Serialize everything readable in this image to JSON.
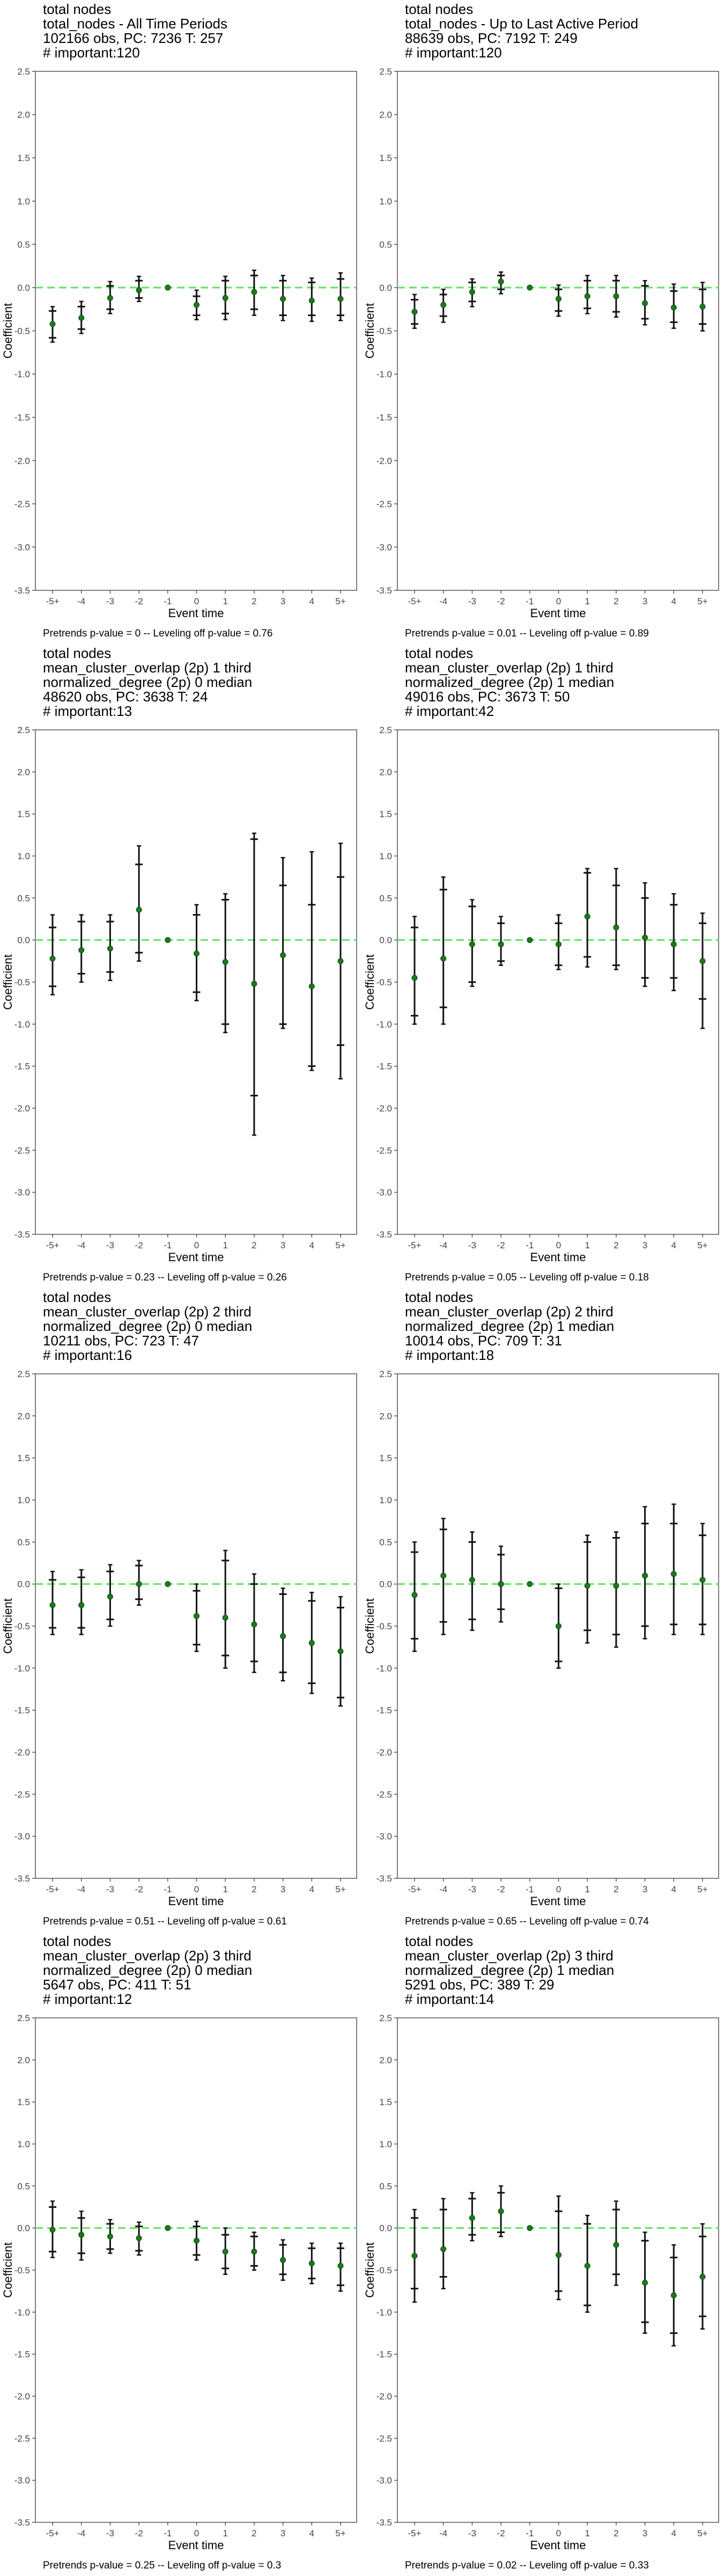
{
  "chart_data": [
    {
      "type": "scatter",
      "title_lines": [
        "total nodes",
        "total_nodes - All Time Periods",
        "102166 obs, PC: 7236 T: 257"
      ],
      "important": "# important:120",
      "xlabel": "Event time",
      "ylabel": "Coefficient",
      "categories": [
        "-5+",
        "-4",
        "-3",
        "-2",
        "-1",
        "0",
        "1",
        "2",
        "3",
        "4",
        "5+"
      ],
      "ylim": [
        -3.5,
        2.5
      ],
      "yticks": [
        "2.5",
        "2.0",
        "1.5",
        "1.0",
        "0.5",
        "0.0",
        "-0.5",
        "-1.0",
        "-1.5",
        "-2.0",
        "-2.5",
        "-3.0",
        "-3.5"
      ],
      "estimate": [
        -0.42,
        -0.35,
        -0.12,
        -0.03,
        0.0,
        -0.2,
        -0.12,
        -0.05,
        -0.13,
        -0.15,
        -0.13
      ],
      "ci90": [
        [
          -0.58,
          -0.27
        ],
        [
          -0.48,
          -0.22
        ],
        [
          -0.25,
          0.02
        ],
        [
          -0.12,
          0.08
        ],
        [
          0.0,
          0.0
        ],
        [
          -0.32,
          -0.1
        ],
        [
          -0.3,
          0.08
        ],
        [
          -0.25,
          0.14
        ],
        [
          -0.32,
          0.08
        ],
        [
          -0.32,
          0.06
        ],
        [
          -0.32,
          0.1
        ]
      ],
      "ci95": [
        [
          -0.63,
          -0.22
        ],
        [
          -0.53,
          -0.16
        ],
        [
          -0.3,
          0.07
        ],
        [
          -0.16,
          0.13
        ],
        [
          0.0,
          0.0
        ],
        [
          -0.37,
          -0.03
        ],
        [
          -0.37,
          0.13
        ],
        [
          -0.32,
          0.2
        ],
        [
          -0.38,
          0.14
        ],
        [
          -0.39,
          0.11
        ],
        [
          -0.38,
          0.17
        ]
      ],
      "pretrends": "Pretrends p-value = 0 -- Leveling off p-value = 0.76",
      "reference_line": 0.0
    },
    {
      "type": "scatter",
      "title_lines": [
        "total nodes",
        "total_nodes - Up to Last Active Period",
        "88639 obs, PC: 7192 T: 249"
      ],
      "important": "# important:120",
      "xlabel": "Event time",
      "ylabel": "Coefficient",
      "categories": [
        "-5+",
        "-4",
        "-3",
        "-2",
        "-1",
        "0",
        "1",
        "2",
        "3",
        "4",
        "5+"
      ],
      "ylim": [
        -3.5,
        2.5
      ],
      "yticks": [
        "2.5",
        "2.0",
        "1.5",
        "1.0",
        "0.5",
        "0.0",
        "-0.5",
        "-1.0",
        "-1.5",
        "-2.0",
        "-2.5",
        "-3.0",
        "-3.5"
      ],
      "estimate": [
        -0.28,
        -0.2,
        -0.05,
        0.07,
        0.0,
        -0.13,
        -0.1,
        -0.1,
        -0.18,
        -0.23,
        -0.22
      ],
      "ci90": [
        [
          -0.42,
          -0.14
        ],
        [
          -0.33,
          -0.08
        ],
        [
          -0.16,
          0.06
        ],
        [
          -0.02,
          0.14
        ],
        [
          0.0,
          0.0
        ],
        [
          -0.27,
          -0.02
        ],
        [
          -0.24,
          0.08
        ],
        [
          -0.28,
          0.08
        ],
        [
          -0.36,
          0.02
        ],
        [
          -0.4,
          -0.04
        ],
        [
          -0.42,
          -0.02
        ]
      ],
      "ci95": [
        [
          -0.47,
          -0.08
        ],
        [
          -0.4,
          -0.02
        ],
        [
          -0.22,
          0.1
        ],
        [
          -0.07,
          0.18
        ],
        [
          0.0,
          0.0
        ],
        [
          -0.33,
          0.03
        ],
        [
          -0.3,
          0.14
        ],
        [
          -0.34,
          0.14
        ],
        [
          -0.43,
          0.08
        ],
        [
          -0.47,
          0.04
        ],
        [
          -0.5,
          0.06
        ]
      ],
      "pretrends": "Pretrends p-value = 0.01 -- Leveling off p-value = 0.89",
      "reference_line": 0.0
    },
    {
      "type": "scatter",
      "title_lines": [
        "total nodes",
        "mean_cluster_overlap (2p) 1 third",
        "normalized_degree (2p) 0 median",
        "48620 obs, PC: 3638 T: 24"
      ],
      "important": "# important:13",
      "xlabel": "Event time",
      "ylabel": "Coefficient",
      "categories": [
        "-5+",
        "-4",
        "-3",
        "-2",
        "-1",
        "0",
        "1",
        "2",
        "3",
        "4",
        "5+"
      ],
      "ylim": [
        -3.5,
        2.5
      ],
      "yticks": [
        "2.5",
        "2.0",
        "1.5",
        "1.0",
        "0.5",
        "0.0",
        "-0.5",
        "-1.0",
        "-1.5",
        "-2.0",
        "-2.5",
        "-3.0",
        "-3.5"
      ],
      "estimate": [
        -0.22,
        -0.12,
        -0.1,
        0.36,
        0.0,
        -0.16,
        -0.26,
        -0.52,
        -0.18,
        -0.55,
        -0.25
      ],
      "ci90": [
        [
          -0.55,
          0.15
        ],
        [
          -0.4,
          0.22
        ],
        [
          -0.38,
          0.22
        ],
        [
          -0.15,
          0.9
        ],
        [
          0.0,
          0.0
        ],
        [
          -0.62,
          0.3
        ],
        [
          -1.0,
          0.48
        ],
        [
          -1.85,
          1.2
        ],
        [
          -1.0,
          0.65
        ],
        [
          -1.5,
          0.42
        ],
        [
          -1.25,
          0.75
        ]
      ],
      "ci95": [
        [
          -0.65,
          0.3
        ],
        [
          -0.5,
          0.3
        ],
        [
          -0.48,
          0.3
        ],
        [
          -0.25,
          1.12
        ],
        [
          0.0,
          0.0
        ],
        [
          -0.72,
          0.42
        ],
        [
          -1.1,
          0.55
        ],
        [
          -2.32,
          1.27
        ],
        [
          -1.05,
          0.98
        ],
        [
          -1.55,
          1.05
        ],
        [
          -1.65,
          1.15
        ]
      ],
      "pretrends": "Pretrends p-value = 0.23 -- Leveling off p-value = 0.26",
      "reference_line": 0.0
    },
    {
      "type": "scatter",
      "title_lines": [
        "total nodes",
        "mean_cluster_overlap (2p) 1 third",
        "normalized_degree (2p) 1 median",
        "49016 obs, PC: 3673 T: 50"
      ],
      "important": "# important:42",
      "xlabel": "Event time",
      "ylabel": "Coefficient",
      "categories": [
        "-5+",
        "-4",
        "-3",
        "-2",
        "-1",
        "0",
        "1",
        "2",
        "3",
        "4",
        "5+"
      ],
      "ylim": [
        -3.5,
        2.5
      ],
      "yticks": [
        "2.5",
        "2.0",
        "1.5",
        "1.0",
        "0.5",
        "0.0",
        "-0.5",
        "-1.0",
        "-1.5",
        "-2.0",
        "-2.5",
        "-3.0",
        "-3.5"
      ],
      "estimate": [
        -0.45,
        -0.22,
        -0.05,
        -0.05,
        0.0,
        -0.05,
        0.28,
        0.15,
        0.03,
        -0.05,
        -0.25
      ],
      "ci90": [
        [
          -0.9,
          0.15
        ],
        [
          -0.8,
          0.6
        ],
        [
          -0.5,
          0.4
        ],
        [
          -0.25,
          0.2
        ],
        [
          0.0,
          0.0
        ],
        [
          -0.3,
          0.2
        ],
        [
          -0.2,
          0.8
        ],
        [
          -0.3,
          0.65
        ],
        [
          -0.45,
          0.5
        ],
        [
          -0.45,
          0.42
        ],
        [
          -0.7,
          0.2
        ]
      ],
      "ci95": [
        [
          -1.0,
          0.28
        ],
        [
          -1.0,
          0.75
        ],
        [
          -0.55,
          0.48
        ],
        [
          -0.3,
          0.28
        ],
        [
          0.0,
          0.0
        ],
        [
          -0.35,
          0.3
        ],
        [
          -0.32,
          0.85
        ],
        [
          -0.35,
          0.85
        ],
        [
          -0.55,
          0.68
        ],
        [
          -0.6,
          0.55
        ],
        [
          -1.05,
          0.32
        ]
      ],
      "pretrends": "Pretrends p-value = 0.05 -- Leveling off p-value = 0.18",
      "reference_line": 0.0
    },
    {
      "type": "scatter",
      "title_lines": [
        "total nodes",
        "mean_cluster_overlap (2p) 2 third",
        "normalized_degree (2p) 0 median",
        "10211 obs, PC: 723 T: 47"
      ],
      "important": "# important:16",
      "xlabel": "Event time",
      "ylabel": "Coefficient",
      "categories": [
        "-5+",
        "-4",
        "-3",
        "-2",
        "-1",
        "0",
        "1",
        "2",
        "3",
        "4",
        "5+"
      ],
      "ylim": [
        -3.5,
        2.5
      ],
      "yticks": [
        "2.5",
        "2.0",
        "1.5",
        "1.0",
        "0.5",
        "0.0",
        "-0.5",
        "-1.0",
        "-1.5",
        "-2.0",
        "-2.5",
        "-3.0",
        "-3.5"
      ],
      "estimate": [
        -0.25,
        -0.25,
        -0.15,
        0.0,
        0.0,
        -0.38,
        -0.4,
        -0.48,
        -0.62,
        -0.7,
        -0.8
      ],
      "ci90": [
        [
          -0.52,
          0.05
        ],
        [
          -0.52,
          0.08
        ],
        [
          -0.42,
          0.15
        ],
        [
          -0.18,
          0.22
        ],
        [
          0.0,
          0.0
        ],
        [
          -0.72,
          -0.08
        ],
        [
          -0.85,
          0.28
        ],
        [
          -0.92,
          0.0
        ],
        [
          -1.05,
          -0.12
        ],
        [
          -1.18,
          -0.2
        ],
        [
          -1.35,
          -0.28
        ]
      ],
      "ci95": [
        [
          -0.6,
          0.15
        ],
        [
          -0.6,
          0.17
        ],
        [
          -0.5,
          0.23
        ],
        [
          -0.25,
          0.28
        ],
        [
          0.0,
          0.0
        ],
        [
          -0.8,
          0.0
        ],
        [
          -1.0,
          0.4
        ],
        [
          -1.05,
          0.12
        ],
        [
          -1.15,
          -0.05
        ],
        [
          -1.3,
          -0.1
        ],
        [
          -1.45,
          -0.15
        ]
      ],
      "pretrends": "Pretrends p-value = 0.51 -- Leveling off p-value = 0.61",
      "reference_line": 0.0
    },
    {
      "type": "scatter",
      "title_lines": [
        "total nodes",
        "mean_cluster_overlap (2p) 2 third",
        "normalized_degree (2p) 1 median",
        "10014 obs, PC: 709 T: 31"
      ],
      "important": "# important:18",
      "xlabel": "Event time",
      "ylabel": "Coefficient",
      "categories": [
        "-5+",
        "-4",
        "-3",
        "-2",
        "-1",
        "0",
        "1",
        "2",
        "3",
        "4",
        "5+"
      ],
      "ylim": [
        -3.5,
        2.5
      ],
      "yticks": [
        "2.5",
        "2.0",
        "1.5",
        "1.0",
        "0.5",
        "0.0",
        "-0.5",
        "-1.0",
        "-1.5",
        "-2.0",
        "-2.5",
        "-3.0",
        "-3.5"
      ],
      "estimate": [
        -0.13,
        0.1,
        0.05,
        0.0,
        0.0,
        -0.5,
        -0.02,
        -0.02,
        0.1,
        0.12,
        0.05
      ],
      "ci90": [
        [
          -0.65,
          0.38
        ],
        [
          -0.45,
          0.65
        ],
        [
          -0.42,
          0.5
        ],
        [
          -0.3,
          0.35
        ],
        [
          0.0,
          0.0
        ],
        [
          -0.92,
          -0.05
        ],
        [
          -0.55,
          0.5
        ],
        [
          -0.6,
          0.55
        ],
        [
          -0.5,
          0.72
        ],
        [
          -0.48,
          0.72
        ],
        [
          -0.48,
          0.58
        ]
      ],
      "ci95": [
        [
          -0.8,
          0.5
        ],
        [
          -0.6,
          0.78
        ],
        [
          -0.55,
          0.62
        ],
        [
          -0.45,
          0.45
        ],
        [
          0.0,
          0.0
        ],
        [
          -1.0,
          0.0
        ],
        [
          -0.7,
          0.58
        ],
        [
          -0.75,
          0.62
        ],
        [
          -0.65,
          0.92
        ],
        [
          -0.6,
          0.95
        ],
        [
          -0.6,
          0.72
        ]
      ],
      "pretrends": "Pretrends p-value = 0.65 -- Leveling off p-value = 0.74",
      "reference_line": 0.0
    },
    {
      "type": "scatter",
      "title_lines": [
        "total nodes",
        "mean_cluster_overlap (2p) 3 third",
        "normalized_degree (2p) 0 median",
        "5647 obs, PC: 411 T: 51"
      ],
      "important": "# important:12",
      "xlabel": "Event time",
      "ylabel": "Coefficient",
      "categories": [
        "-5+",
        "-4",
        "-3",
        "-2",
        "-1",
        "0",
        "1",
        "2",
        "3",
        "4",
        "5+"
      ],
      "ylim": [
        -3.5,
        2.5
      ],
      "yticks": [
        "2.5",
        "2.0",
        "1.5",
        "1.0",
        "0.5",
        "0.0",
        "-0.5",
        "-1.0",
        "-1.5",
        "-2.0",
        "-2.5",
        "-3.0",
        "-3.5"
      ],
      "estimate": [
        -0.02,
        -0.08,
        -0.1,
        -0.12,
        0.0,
        -0.15,
        -0.28,
        -0.28,
        -0.38,
        -0.42,
        -0.45
      ],
      "ci90": [
        [
          -0.28,
          0.25
        ],
        [
          -0.3,
          0.12
        ],
        [
          -0.25,
          0.05
        ],
        [
          -0.27,
          0.02
        ],
        [
          0.0,
          0.0
        ],
        [
          -0.32,
          0.02
        ],
        [
          -0.48,
          -0.08
        ],
        [
          -0.45,
          -0.1
        ],
        [
          -0.55,
          -0.2
        ],
        [
          -0.6,
          -0.24
        ],
        [
          -0.68,
          -0.24
        ]
      ],
      "ci95": [
        [
          -0.35,
          0.32
        ],
        [
          -0.38,
          0.2
        ],
        [
          -0.3,
          0.1
        ],
        [
          -0.32,
          0.07
        ],
        [
          0.0,
          0.0
        ],
        [
          -0.38,
          0.08
        ],
        [
          -0.55,
          0.0
        ],
        [
          -0.5,
          -0.05
        ],
        [
          -0.62,
          -0.14
        ],
        [
          -0.66,
          -0.18
        ],
        [
          -0.75,
          -0.18
        ]
      ],
      "pretrends": "Pretrends p-value = 0.25 -- Leveling off p-value = 0.3",
      "reference_line": 0.0
    },
    {
      "type": "scatter",
      "title_lines": [
        "total nodes",
        "mean_cluster_overlap (2p) 3 third",
        "normalized_degree (2p) 1 median",
        "5291 obs, PC: 389 T: 29"
      ],
      "important": "# important:14",
      "xlabel": "Event time",
      "ylabel": "Coefficient",
      "categories": [
        "-5+",
        "-4",
        "-3",
        "-2",
        "-1",
        "0",
        "1",
        "2",
        "3",
        "4",
        "5+"
      ],
      "ylim": [
        -3.5,
        2.5
      ],
      "yticks": [
        "2.5",
        "2.0",
        "1.5",
        "1.0",
        "0.5",
        "0.0",
        "-0.5",
        "-1.0",
        "-1.5",
        "-2.0",
        "-2.5",
        "-3.0",
        "-3.5"
      ],
      "estimate": [
        -0.33,
        -0.25,
        0.12,
        0.2,
        0.0,
        -0.32,
        -0.45,
        -0.2,
        -0.65,
        -0.8,
        -0.58
      ],
      "ci90": [
        [
          -0.72,
          0.12
        ],
        [
          -0.58,
          0.22
        ],
        [
          -0.08,
          0.35
        ],
        [
          -0.05,
          0.42
        ],
        [
          0.0,
          0.0
        ],
        [
          -0.75,
          0.2
        ],
        [
          -0.92,
          0.05
        ],
        [
          -0.55,
          0.22
        ],
        [
          -1.12,
          -0.15
        ],
        [
          -1.25,
          -0.35
        ],
        [
          -1.05,
          -0.1
        ]
      ],
      "ci95": [
        [
          -0.88,
          0.22
        ],
        [
          -0.72,
          0.35
        ],
        [
          -0.15,
          0.42
        ],
        [
          -0.1,
          0.5
        ],
        [
          0.0,
          0.0
        ],
        [
          -0.85,
          0.38
        ],
        [
          -1.0,
          0.15
        ],
        [
          -0.68,
          0.32
        ],
        [
          -1.25,
          -0.05
        ],
        [
          -1.4,
          -0.2
        ],
        [
          -1.2,
          0.05
        ]
      ],
      "pretrends": "Pretrends p-value = 0.02 -- Leveling off p-value = 0.33",
      "reference_line": 0.0
    }
  ],
  "colors": {
    "point": "#1a7a1a",
    "ci": "#111111",
    "reference_line": "#5de35d",
    "axis": "#555555",
    "tick_text": "#444444"
  }
}
